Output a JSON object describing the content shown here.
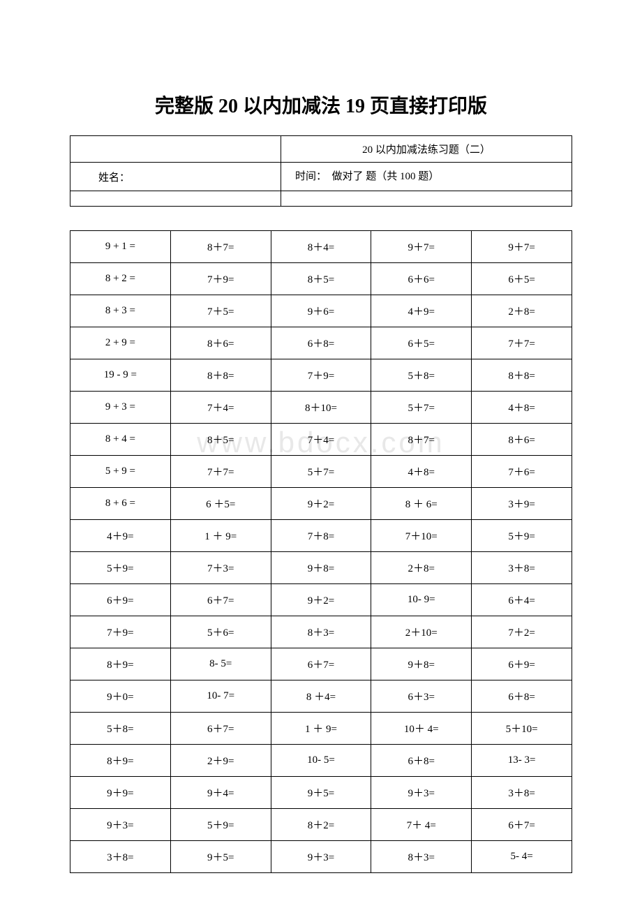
{
  "doc": {
    "title": "完整版 20 以内加减法 19 页直接打印版",
    "watermark": "www.bdocx.com"
  },
  "header": {
    "subtitle": "20 以内加减法练习题（二）",
    "name_label": "姓名：",
    "info_line": "时间：　做对了 题（共 100 题）"
  },
  "questions": {
    "rows": [
      [
        "9 + 1 =",
        "8＋7=",
        "8＋4=",
        "9＋7=",
        "9＋7="
      ],
      [
        "8 + 2 =",
        "7＋9=",
        "8＋5=",
        "6＋6=",
        "6＋5="
      ],
      [
        "8 + 3 =",
        "7＋5=",
        "9＋6=",
        "4＋9=",
        "2＋8="
      ],
      [
        "2 + 9 =",
        "8＋6=",
        "6＋8=",
        "6＋5=",
        "7＋7="
      ],
      [
        "19 - 9 =",
        "8＋8=",
        "7＋9=",
        "5＋8=",
        "8＋8="
      ],
      [
        "9 + 3 =",
        "7＋4=",
        "8＋10=",
        "5＋7=",
        "4＋8="
      ],
      [
        "8 + 4 =",
        "8＋5=",
        "7＋4=",
        "8＋7=",
        "8＋6="
      ],
      [
        "5 + 9 =",
        "7＋7=",
        "5＋7=",
        "4＋8=",
        "7＋6="
      ],
      [
        "8 + 6 =",
        "6 ＋5=",
        "9＋2=",
        "8 ＋ 6=",
        "3＋9="
      ],
      [
        "4＋9=",
        "1 ＋ 9=",
        "7＋8=",
        "7＋10=",
        "5＋9="
      ],
      [
        "5＋9=",
        "7＋3=",
        "9＋8=",
        "2＋8=",
        "3＋8="
      ],
      [
        "6＋9=",
        "6＋7=",
        "9＋2=",
        "10- 9=",
        "6＋4="
      ],
      [
        "7＋9=",
        "5＋6=",
        "8＋3=",
        "2＋10=",
        "7＋2="
      ],
      [
        "8＋9=",
        "8- 5=",
        "6＋7=",
        "9＋8=",
        "6＋9="
      ],
      [
        "9＋0=",
        "10- 7=",
        "8 ＋4=",
        "6＋3=",
        "6＋8="
      ],
      [
        "5＋8=",
        "6＋7=",
        "1 ＋ 9=",
        "10＋ 4=",
        "5＋10="
      ],
      [
        "8＋9=",
        "2＋9=",
        "10- 5=",
        "6＋8=",
        "13- 3="
      ],
      [
        "9＋9=",
        "9＋4=",
        "9＋5=",
        "9＋3=",
        "3＋8="
      ],
      [
        "9＋3=",
        "5＋9=",
        "8＋2=",
        "7＋ 4=",
        "6＋7="
      ],
      [
        "3＋8=",
        "9＋5=",
        "9＋3=",
        "8＋3=",
        "5- 4="
      ]
    ],
    "cols": 5,
    "font_size": 15,
    "text_color": "#000000",
    "border_color": "#000000",
    "background_color": "#ffffff"
  }
}
